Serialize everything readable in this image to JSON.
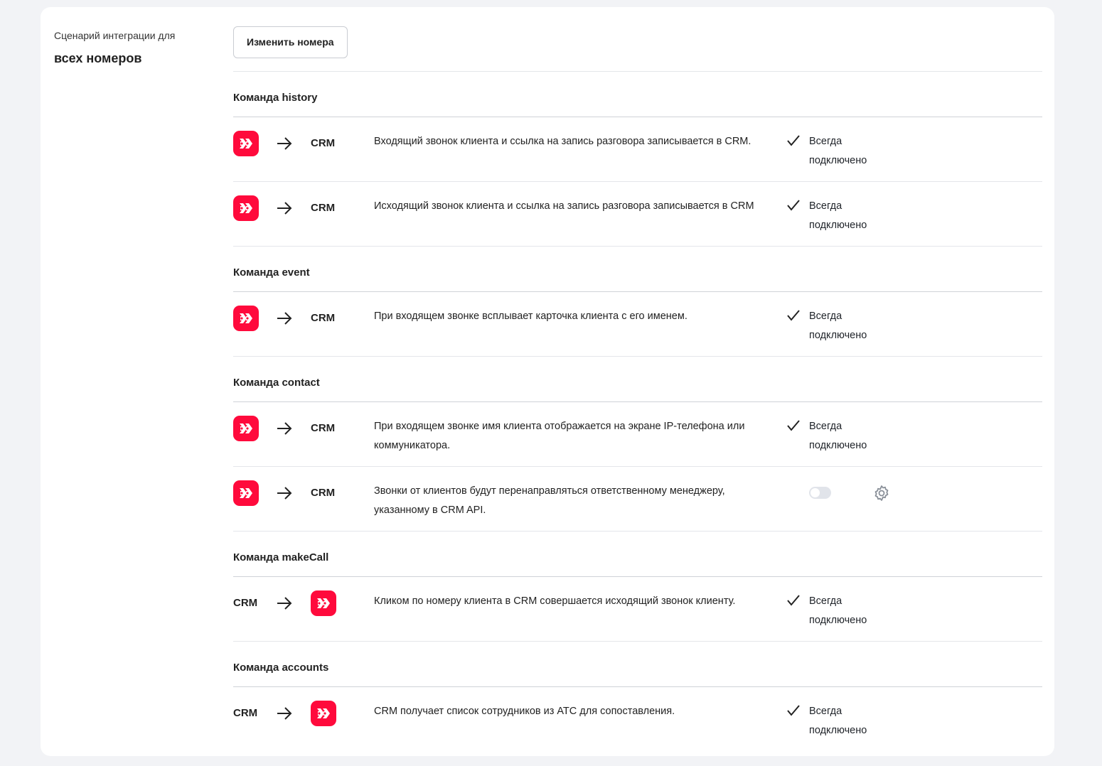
{
  "sidebar": {
    "label_line1": "Сценарий интеграции для",
    "label_line2": "всех номеров"
  },
  "edit_button": "Изменить номера",
  "colors": {
    "brand": "#ff0a3c",
    "background": "#f2f3f6"
  },
  "sections": [
    {
      "title": "Команда history",
      "rows": [
        {
          "direction": "pbx-to-crm",
          "crm": "CRM",
          "desc": "Входящий звонок клиента и ссылка на запись разговора записывается в CRM.",
          "status1": "Всегда",
          "status2": "подключено"
        },
        {
          "direction": "pbx-to-crm",
          "crm": "CRM",
          "desc": "Исходящий звонок клиента и ссылка на запись разговора записывается в CRM",
          "status1": "Всегда",
          "status2": "подключено"
        }
      ]
    },
    {
      "title": "Команда event",
      "rows": [
        {
          "direction": "pbx-to-crm",
          "crm": "CRM",
          "desc": "При входящем звонке всплывает карточка клиента с его именем.",
          "status1": "Всегда",
          "status2": "подключено"
        }
      ]
    },
    {
      "title": "Команда contact",
      "rows": [
        {
          "direction": "pbx-to-crm",
          "crm": "CRM",
          "desc": "При входящем звонке имя клиента отображается на экране IP-телефона или коммуникатора.",
          "status1": "Всегда",
          "status2": "подключено"
        },
        {
          "direction": "pbx-to-crm",
          "crm": "CRM",
          "desc": "Звонки от клиентов будут перенаправляться ответственному менеджеру, указанному в CRM API.",
          "toggle": false
        }
      ]
    },
    {
      "title": "Команда makeCall",
      "rows": [
        {
          "direction": "crm-to-pbx",
          "crm": "CRM",
          "desc": "Кликом по номеру клиента в CRM совершается исходящий звонок клиенту.",
          "status1": "Всегда",
          "status2": "подключено"
        }
      ]
    },
    {
      "title": "Команда accounts",
      "rows": [
        {
          "direction": "crm-to-pbx",
          "crm": "CRM",
          "desc": "CRM получает список сотрудников из АТС для сопоставления.",
          "status1": "Всегда",
          "status2": "подключено"
        }
      ]
    }
  ]
}
